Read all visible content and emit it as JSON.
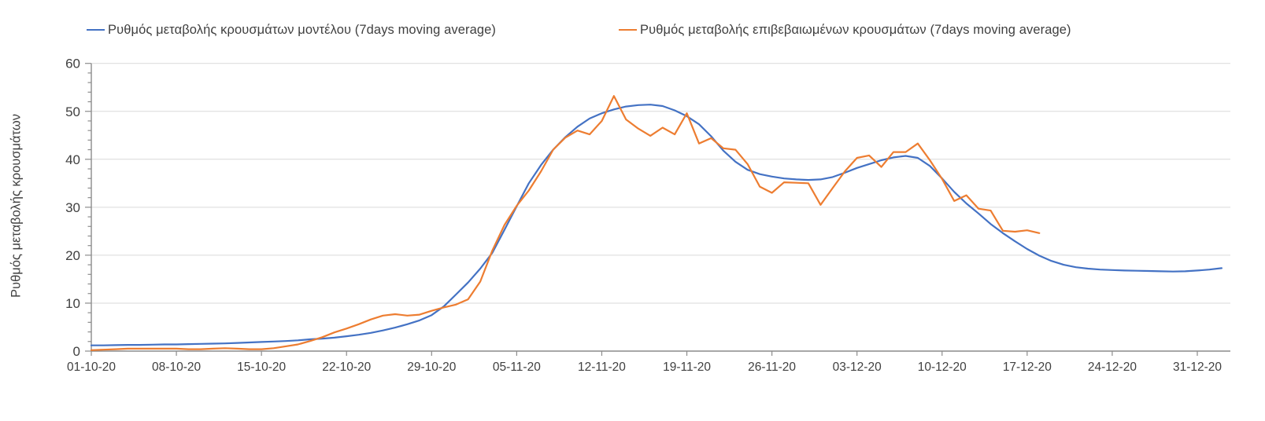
{
  "legend": {
    "items": [
      {
        "id": "model-series",
        "label": "Ρυθμός μεταβολής κρουσμάτων μοντέλου (7days moving average)",
        "color": "#4472C4"
      },
      {
        "id": "confirmed-series",
        "label": "Ρυθμός μεταβολής επιβεβαιωμένων κρουσμάτων (7days moving average)",
        "color": "#ED7D31"
      }
    ]
  },
  "y_axis": {
    "title": "Ρυθμός μεταβολής κρουσμάτων",
    "min": 0,
    "max": 60,
    "major_step": 10,
    "minor_step": 2,
    "tick_labels": [
      "0",
      "10",
      "20",
      "30",
      "40",
      "50",
      "60"
    ]
  },
  "x_axis": {
    "tick_labels": [
      "01-10-20",
      "08-10-20",
      "15-10-20",
      "22-10-20",
      "29-10-20",
      "05-11-20",
      "12-11-20",
      "19-11-20",
      "26-11-20",
      "03-12-20",
      "10-12-20",
      "17-12-20",
      "24-12-20",
      "31-12-20"
    ],
    "days_per_tick": 7
  },
  "colors": {
    "gridline": "#D9D9D9",
    "axis": "#8C8C8C",
    "text": "#404040",
    "model_line": "#4472C4",
    "confirmed_line": "#ED7D31"
  },
  "chart_data": {
    "type": "line",
    "title": "",
    "xlabel": "",
    "ylabel": "Ρυθμός μεταβολής κρουσμάτων",
    "x_unit": "days since 01-10-20 (daily points)",
    "ylim": [
      0,
      60
    ],
    "grid": "horizontal-only",
    "legend_position": "top",
    "series": [
      {
        "id": "model-series",
        "name": "Ρυθμός μεταβολής κρουσμάτων μοντέλου (7days moving average)",
        "color": "#4472C4",
        "start_day": 0,
        "values": [
          1.2,
          1.2,
          1.25,
          1.3,
          1.3,
          1.35,
          1.4,
          1.4,
          1.45,
          1.5,
          1.55,
          1.6,
          1.7,
          1.8,
          1.9,
          2.0,
          2.1,
          2.25,
          2.45,
          2.6,
          2.8,
          3.1,
          3.4,
          3.8,
          4.3,
          4.9,
          5.6,
          6.4,
          7.5,
          9.3,
          11.8,
          14.3,
          17.2,
          20.5,
          25.3,
          30.2,
          35.0,
          38.8,
          42.0,
          44.6,
          46.8,
          48.5,
          49.6,
          50.4,
          51.0,
          51.3,
          51.4,
          51.1,
          50.2,
          49.0,
          47.3,
          44.8,
          41.8,
          39.5,
          37.8,
          36.9,
          36.4,
          36.0,
          35.8,
          35.7,
          35.8,
          36.3,
          37.2,
          38.2,
          39.0,
          39.8,
          40.4,
          40.7,
          40.3,
          38.6,
          36.0,
          33.2,
          30.8,
          28.7,
          26.5,
          24.6,
          22.9,
          21.3,
          19.9,
          18.8,
          18.0,
          17.5,
          17.2,
          17.0,
          16.9,
          16.8,
          16.75,
          16.7,
          16.65,
          16.6,
          16.65,
          16.8,
          17.0,
          17.3
        ]
      },
      {
        "id": "confirmed-series",
        "name": "Ρυθμός μεταβολής επιβεβαιωμένων κρουσμάτων (7days moving average)",
        "color": "#ED7D31",
        "start_day": 0,
        "values": [
          0.2,
          0.3,
          0.4,
          0.5,
          0.5,
          0.5,
          0.5,
          0.5,
          0.4,
          0.4,
          0.5,
          0.6,
          0.5,
          0.4,
          0.4,
          0.6,
          1.0,
          1.4,
          2.1,
          2.9,
          3.9,
          4.7,
          5.6,
          6.6,
          7.4,
          7.7,
          7.4,
          7.6,
          8.4,
          9.1,
          9.7,
          10.8,
          14.5,
          21.0,
          26.3,
          30.3,
          33.5,
          37.5,
          42.0,
          44.5,
          46.0,
          45.2,
          48.0,
          53.2,
          48.3,
          46.4,
          44.9,
          46.6,
          45.2,
          49.6,
          43.3,
          44.4,
          42.3,
          42.0,
          39.0,
          34.3,
          33.0,
          35.2,
          35.1,
          35.0,
          30.5,
          34.0,
          37.5,
          40.3,
          40.8,
          38.4,
          41.5,
          41.5,
          43.3,
          39.8,
          35.9,
          31.3,
          32.5,
          29.7,
          29.3,
          25.1,
          24.9,
          25.2,
          24.6
        ]
      }
    ]
  }
}
